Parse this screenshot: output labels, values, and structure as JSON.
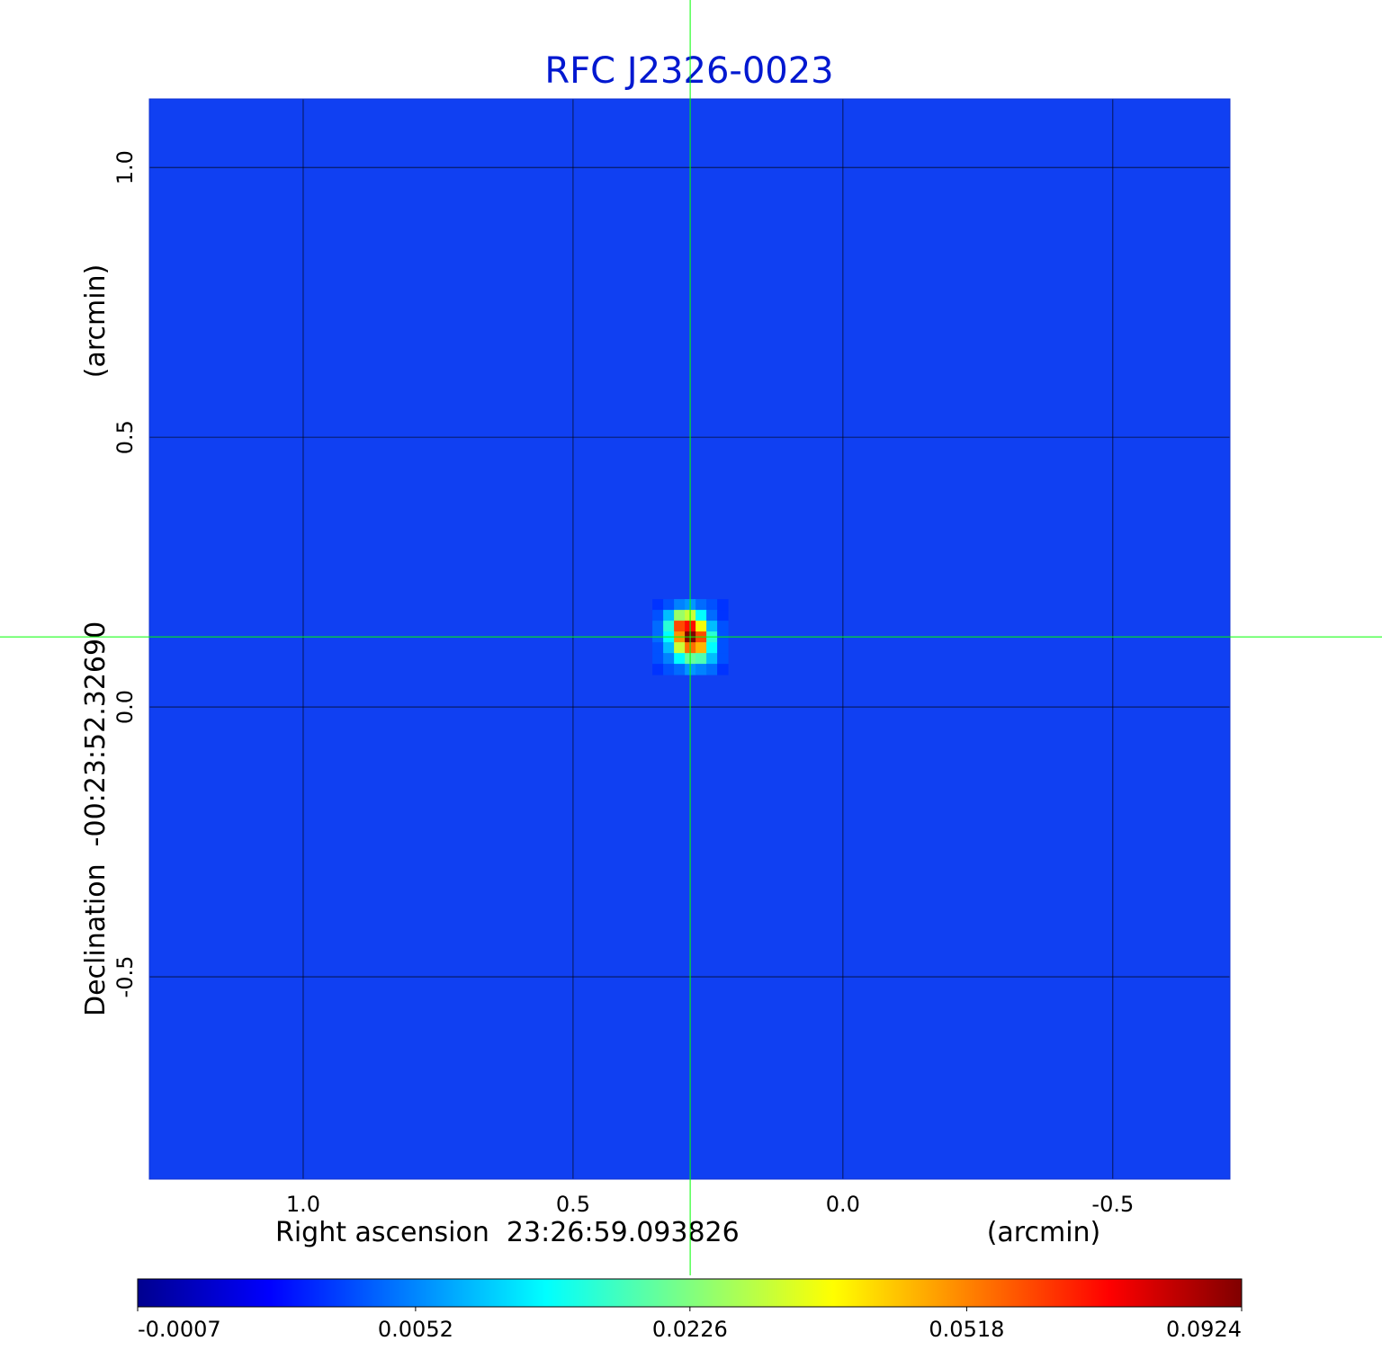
{
  "chart_data": {
    "type": "heatmap",
    "title": "RFC J2326-0023",
    "xlabel": "Right ascension  23:26:59.093826",
    "xunit": "(arcmin)",
    "ylabel": "Declination  -00:23:52.32690",
    "yunit": "(arcmin)",
    "xlim": [
      1.285,
      -0.717
    ],
    "ylim": [
      -0.875,
      1.127
    ],
    "xticks": [
      {
        "value": 1,
        "label": "1.0"
      },
      0.5,
      {
        "value": 0,
        "label": "0.0"
      },
      -0.5
    ],
    "yticks": [
      {
        "value": 1,
        "label": "1.0"
      },
      0.5,
      {
        "value": 0,
        "label": "0.0"
      },
      -0.5
    ],
    "grid": true,
    "color_scale": "sqrt",
    "clim": [
      -0.0007,
      0.0924
    ],
    "colorbar_ticks": [
      -0.0007,
      0.0052,
      0.0226,
      0.0518,
      0.0924
    ],
    "crosshair": {
      "x": 0.283,
      "y": 0.13,
      "color": "#00ff00"
    },
    "x": [
      0.343,
      0.323,
      0.303,
      0.283,
      0.263,
      0.243,
      0.223
    ],
    "y": [
      0.19,
      0.17,
      0.15,
      0.13,
      0.11,
      0.09,
      0.07
    ],
    "z": [
      [
        0.002,
        0.003,
        0.005,
        0.006,
        0.004,
        0.003,
        0.002
      ],
      [
        0.003,
        0.008,
        0.025,
        0.03,
        0.012,
        0.004,
        0.002
      ],
      [
        0.004,
        0.015,
        0.06,
        0.07,
        0.035,
        0.008,
        0.003
      ],
      [
        0.004,
        0.012,
        0.05,
        0.0924,
        0.06,
        0.015,
        0.003
      ],
      [
        0.003,
        0.008,
        0.03,
        0.055,
        0.045,
        0.012,
        0.003
      ],
      [
        0.003,
        0.005,
        0.012,
        0.02,
        0.018,
        0.008,
        0.003
      ],
      [
        0.002,
        0.003,
        0.004,
        0.006,
        0.005,
        0.004,
        0.002
      ]
    ]
  }
}
